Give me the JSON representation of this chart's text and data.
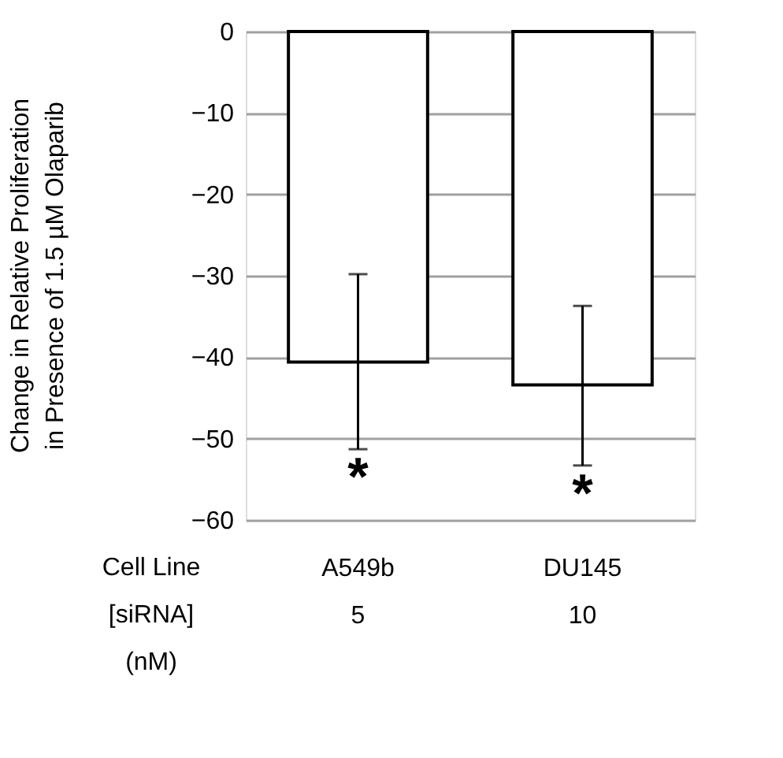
{
  "chart_data": {
    "type": "bar",
    "categories": [
      "A549b\n5",
      "DU145\n10"
    ],
    "values": [
      -40.6,
      -43.4
    ],
    "errors": [
      [
        -51.3,
        -29.8
      ],
      [
        -53.3,
        -33.7
      ]
    ],
    "color": "#ffffff",
    "xlabel": "Cell Line\n[siRNA]\n(nM)",
    "ylabel": "Change in Relative Proliferation\nin Presence of 1.5 µM Olaparib",
    "ylim": [
      -60,
      0
    ],
    "yticks": [
      -60,
      -50,
      -40,
      -30,
      -20,
      -10,
      0
    ],
    "grid": "y",
    "annotations": [
      "*",
      "*"
    ]
  }
}
